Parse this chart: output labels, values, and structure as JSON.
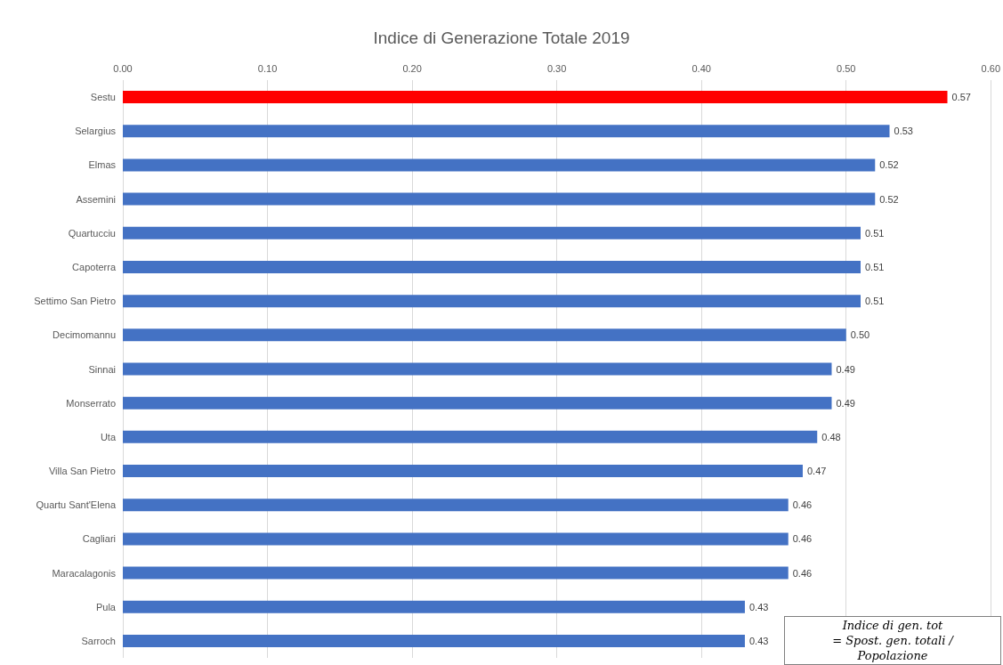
{
  "chart_data": {
    "type": "bar",
    "orientation": "horizontal",
    "title": "Indice di Generazione Totale 2019",
    "categories": [
      "Sestu",
      "Selargius",
      "Elmas",
      "Assemini",
      "Quartucciu",
      "Capoterra",
      "Settimo San Pietro",
      "Decimomannu",
      "Sinnai",
      "Monserrato",
      "Uta",
      "Villa San Pietro",
      "Quartu Sant'Elena",
      "Cagliari",
      "Maracalagonis",
      "Pula",
      "Sarroch"
    ],
    "values": [
      0.57,
      0.53,
      0.52,
      0.52,
      0.51,
      0.51,
      0.51,
      0.5,
      0.49,
      0.49,
      0.48,
      0.47,
      0.46,
      0.46,
      0.46,
      0.43,
      0.43
    ],
    "colors": [
      "#ff0000",
      "#4472c4",
      "#4472c4",
      "#4472c4",
      "#4472c4",
      "#4472c4",
      "#4472c4",
      "#4472c4",
      "#4472c4",
      "#4472c4",
      "#4472c4",
      "#4472c4",
      "#4472c4",
      "#4472c4",
      "#4472c4",
      "#4472c4",
      "#4472c4"
    ],
    "value_labels": [
      "0.57",
      "0.53",
      "0.52",
      "0.52",
      "0.51",
      "0.51",
      "0.51",
      "0.50",
      "0.49",
      "0.49",
      "0.48",
      "0.47",
      "0.46",
      "0.46",
      "0.46",
      "0.43",
      "0.43"
    ],
    "xlim": [
      0,
      0.6
    ],
    "xticks": [
      {
        "value": 0,
        "label": "0.00"
      },
      {
        "value": 0.1,
        "label": "0.10"
      },
      {
        "value": 0.2,
        "label": "0.20"
      },
      {
        "value": 0.3,
        "label": "0.30"
      },
      {
        "value": 0.4,
        "label": "0.40"
      },
      {
        "value": 0.5,
        "label": "0.50"
      },
      {
        "value": 0.6,
        "label": "0.60"
      }
    ],
    "grid": "x",
    "annotations": [
      "Indice di gen. tot = Spost. gen. totali / Popolazione"
    ]
  }
}
